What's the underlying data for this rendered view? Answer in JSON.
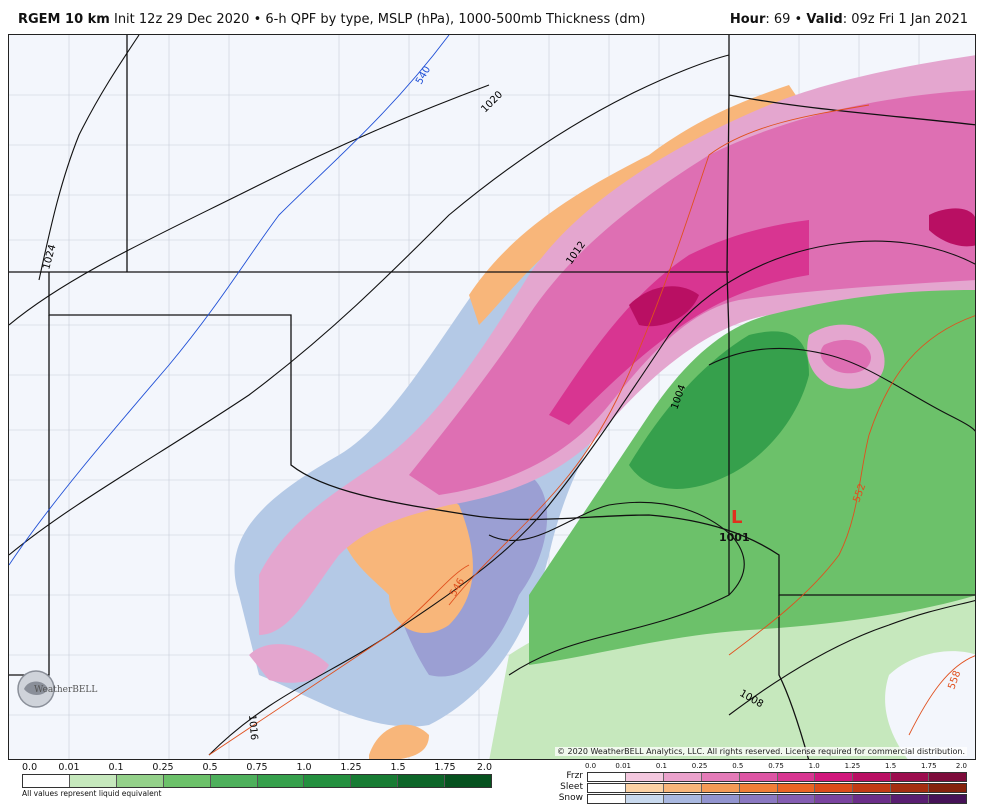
{
  "header": {
    "model": "RGEM 10 km",
    "description": "Init 12z 29 Dec 2020 • 6-h QPF by type, MSLP (hPa), 1000-500mb Thickness (dm)",
    "hour_label": "Hour",
    "hour_value": ": 69 •",
    "valid_label": "Valid",
    "valid_value": ": 09z Fri 1 Jan 2021"
  },
  "map": {
    "isobar_labels": [
      "1024",
      "1020",
      "1016",
      "1012",
      "1008",
      "1004"
    ],
    "thickness_labels": [
      "540",
      "546",
      "552",
      "558"
    ],
    "low_center": {
      "symbol": "L",
      "pressure": "1001"
    },
    "copyright": "© 2020 WeatherBELL Analytics, LLC. All rights reserved. License required for commercial distribution.",
    "logo_text": "WeatherBELL",
    "colors": {
      "background": "#f3f6fc",
      "isobar": "#111111",
      "thickness_cold": "#1f4fd6",
      "thickness_warm": "#e0501e",
      "border": "#111111",
      "county": "#c8ccd8"
    }
  },
  "legend_qpf": {
    "ticks": [
      "0.0",
      "0.01",
      "0.1",
      "0.25",
      "0.5",
      "0.75",
      "1.0",
      "1.25",
      "1.5",
      "1.75",
      "2.0"
    ],
    "colors": [
      "#ffffff",
      "#c6e8bd",
      "#94d18a",
      "#6cc16a",
      "#4eb05c",
      "#36a04c",
      "#24903f",
      "#187c34",
      "#0d6629",
      "#06521f"
    ],
    "note": "All values represent liquid equivalent"
  },
  "legend_type": {
    "ticks": [
      "0.0",
      "0.01",
      "0.1",
      "0.25",
      "0.5",
      "0.75",
      "1.0",
      "1.25",
      "1.5",
      "1.75",
      "2.0"
    ],
    "rows": [
      {
        "label": "Frzr",
        "colors": [
          "#ffffff",
          "#f4c8df",
          "#eba2cc",
          "#e47bb8",
          "#dd55a4",
          "#d83591",
          "#d1177c",
          "#b90f63",
          "#9c0d4e",
          "#7d0b3b"
        ]
      },
      {
        "label": "Sleet",
        "colors": [
          "#ffffff",
          "#fbd2a4",
          "#f8b67a",
          "#f49b56",
          "#f07e37",
          "#ea6424",
          "#dc4c1a",
          "#c23b14",
          "#a52e10",
          "#85220c"
        ]
      },
      {
        "label": "Snow",
        "colors": [
          "#ffffff",
          "#c8d9ee",
          "#a9b8e0",
          "#9294cf",
          "#8a78c1",
          "#845db2",
          "#7a449f",
          "#6b2e89",
          "#591e71",
          "#461257"
        ]
      }
    ]
  }
}
